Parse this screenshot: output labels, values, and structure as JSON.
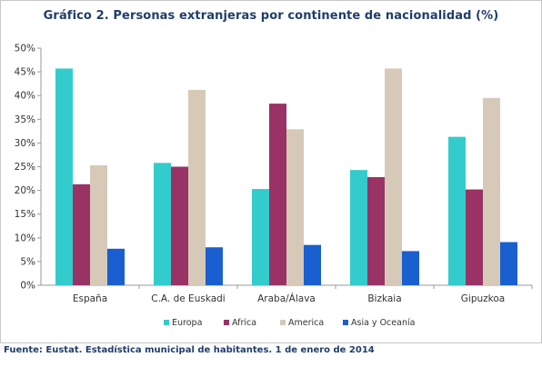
{
  "chart_data": {
    "type": "bar",
    "title": "Gráfico 2. Personas extranjeras por continente de nacionalidad (%)",
    "categories": [
      "España",
      "C.A. de Euskadi",
      "Araba/Álava",
      "Bizkaia",
      "Gipuzkoa"
    ],
    "series": [
      {
        "name": "Europa",
        "color": "#33cccc",
        "values": [
          45.7,
          25.8,
          20.3,
          24.3,
          31.3
        ]
      },
      {
        "name": "Africa",
        "color": "#993366",
        "values": [
          21.3,
          25.0,
          38.3,
          22.8,
          20.2
        ]
      },
      {
        "name": "America",
        "color": "#d6c9b8",
        "values": [
          25.3,
          41.2,
          32.9,
          45.7,
          39.5
        ]
      },
      {
        "name": "Asia y Oceanía",
        "color": "#1a5fd0",
        "values": [
          7.7,
          8.0,
          8.5,
          7.2,
          9.1
        ]
      }
    ],
    "ylim": [
      0,
      50
    ],
    "yticks": [
      "0%",
      "5%",
      "10%",
      "15%",
      "20%",
      "25%",
      "30%",
      "35%",
      "40%",
      "45%",
      "50%"
    ],
    "ytick_values": [
      0,
      5,
      10,
      15,
      20,
      25,
      30,
      35,
      40,
      45,
      50
    ],
    "grid": false,
    "legend_position": "bottom"
  },
  "source": "Fuente: Eustat. Estadística municipal de habitantes. 1 de enero de 2014"
}
